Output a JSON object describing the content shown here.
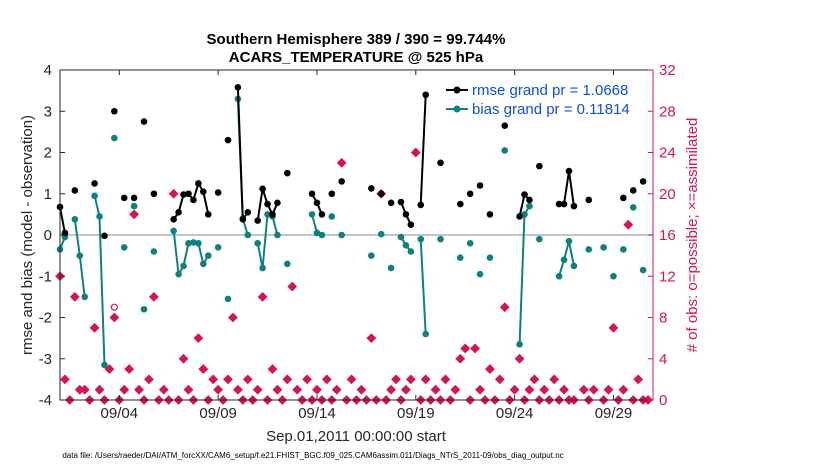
{
  "chart_data": {
    "type": "line",
    "title": "Southern Hemisphere 389 / 390 = 99.744%",
    "subtitle": "ACARS_TEMPERATURE @ 525 hPa",
    "xlabel": "Sep.01,2011 00:00:00 start",
    "ylabel": "rmse and bias (model - observation)",
    "y2label": "# of obs: o=possible; ×=assimilated",
    "footer": "data file: /Users/raeder/DAI/ATM_forcXX/CAM6_setup/f.e21.FHIST_BGC.f09_025.CAM6assim.011/Diags_NTrS_2011-09/obs_diag_output.nc",
    "xlim": [
      1,
      31
    ],
    "ylim": [
      -4,
      4
    ],
    "y2lim": [
      0,
      32
    ],
    "x_ticks": [
      4,
      9,
      14,
      19,
      24,
      29
    ],
    "x_tick_labels": [
      "09/04",
      "09/09",
      "09/14",
      "09/19",
      "09/24",
      "09/29"
    ],
    "y_ticks": [
      -4,
      -3,
      -2,
      -1,
      0,
      1,
      2,
      3,
      4
    ],
    "y_tick_labels": [
      "-4",
      "-3",
      "-2",
      "-1",
      "0",
      "1",
      "2",
      "3",
      "4"
    ],
    "y2_ticks": [
      0,
      4,
      8,
      12,
      16,
      20,
      24,
      28,
      32
    ],
    "y2_tick_labels": [
      "0",
      "4",
      "8",
      "12",
      "16",
      "20",
      "24",
      "28",
      "32"
    ],
    "legend_position": "top-right",
    "zero_line": 0,
    "colors": {
      "rmse": "#000000",
      "bias": "#0f8080",
      "obs": "#d4145a",
      "legend_text": "#0b4fe0",
      "zero_line": "#b0b0b0"
    },
    "series": [
      {
        "name": "rmse grand pr = 1.0668",
        "values": [
          [
            1.0,
            0.68
          ],
          [
            1.25,
            0.05
          ],
          [
            1.75,
            1.08
          ],
          [
            2.75,
            1.25
          ],
          [
            3.25,
            -0.02
          ],
          [
            3.75,
            3.0
          ],
          [
            4.25,
            0.9
          ],
          [
            4.75,
            0.9
          ],
          [
            5.25,
            2.75
          ],
          [
            5.75,
            1.0
          ],
          [
            6.75,
            0.38
          ],
          [
            7.0,
            0.55
          ],
          [
            7.25,
            0.98
          ],
          [
            7.5,
            1.0
          ],
          [
            7.75,
            0.85
          ],
          [
            8.0,
            1.25
          ],
          [
            8.25,
            1.05
          ],
          [
            8.5,
            0.5
          ],
          [
            9.0,
            1.03
          ],
          [
            9.5,
            2.3
          ],
          [
            10.0,
            3.58
          ],
          [
            10.25,
            0.38
          ],
          [
            10.5,
            0.55
          ],
          [
            11.0,
            0.35
          ],
          [
            11.25,
            1.12
          ],
          [
            11.5,
            0.75
          ],
          [
            11.75,
            0.5
          ],
          [
            12.0,
            0.78
          ],
          [
            12.5,
            1.5
          ],
          [
            13.75,
            1.0
          ],
          [
            14.0,
            0.78
          ],
          [
            14.25,
            0.5
          ],
          [
            14.75,
            1.0
          ],
          [
            15.25,
            1.3
          ],
          [
            16.75,
            1.13
          ],
          [
            17.25,
            1.0
          ],
          [
            17.75,
            0.78
          ],
          [
            18.25,
            0.8
          ],
          [
            18.5,
            0.5
          ],
          [
            18.75,
            0.25
          ],
          [
            19.25,
            0.73
          ],
          [
            19.5,
            3.4
          ],
          [
            20.25,
            1.75
          ],
          [
            21.25,
            0.75
          ],
          [
            21.75,
            1.0
          ],
          [
            22.25,
            1.2
          ],
          [
            22.75,
            0.5
          ],
          [
            23.5,
            2.65
          ],
          [
            24.25,
            0.45
          ],
          [
            24.5,
            0.98
          ],
          [
            24.75,
            0.85
          ],
          [
            25.25,
            1.67
          ],
          [
            26.25,
            0.75
          ],
          [
            26.5,
            0.75
          ],
          [
            26.75,
            1.55
          ],
          [
            27.0,
            0.7
          ],
          [
            27.75,
            0.85
          ],
          [
            29.5,
            0.9
          ],
          [
            30.0,
            1.08
          ],
          [
            30.5,
            1.3
          ]
        ]
      },
      {
        "name": "bias grand pr = 0.11814",
        "values": [
          [
            1.0,
            -0.35
          ],
          [
            1.25,
            -0.05
          ],
          [
            1.75,
            0.38
          ],
          [
            2.0,
            -0.5
          ],
          [
            2.25,
            -1.5
          ],
          [
            2.75,
            0.95
          ],
          [
            3.0,
            0.45
          ],
          [
            3.25,
            -3.15
          ],
          [
            3.75,
            2.35
          ],
          [
            4.25,
            -0.3
          ],
          [
            4.75,
            0.7
          ],
          [
            5.25,
            -1.8
          ],
          [
            5.75,
            -0.4
          ],
          [
            6.75,
            0.1
          ],
          [
            7.0,
            -0.95
          ],
          [
            7.25,
            -0.75
          ],
          [
            7.5,
            -0.2
          ],
          [
            7.75,
            -0.18
          ],
          [
            8.0,
            -0.2
          ],
          [
            8.25,
            -0.7
          ],
          [
            8.5,
            -0.5
          ],
          [
            9.0,
            -0.3
          ],
          [
            9.5,
            -1.55
          ],
          [
            10.0,
            3.3
          ],
          [
            10.25,
            0.4
          ],
          [
            10.5,
            0.0
          ],
          [
            11.0,
            -0.2
          ],
          [
            11.25,
            -0.8
          ],
          [
            11.5,
            0.5
          ],
          [
            11.75,
            0.45
          ],
          [
            12.0,
            0.0
          ],
          [
            12.5,
            -0.7
          ],
          [
            13.75,
            0.5
          ],
          [
            14.0,
            0.05
          ],
          [
            14.25,
            0.0
          ],
          [
            14.75,
            0.45
          ],
          [
            15.25,
            0.0
          ],
          [
            16.75,
            -0.5
          ],
          [
            17.25,
            0.02
          ],
          [
            17.75,
            -0.8
          ],
          [
            18.25,
            -0.05
          ],
          [
            18.5,
            -0.25
          ],
          [
            18.75,
            -0.4
          ],
          [
            19.25,
            -0.1
          ],
          [
            19.5,
            -2.4
          ],
          [
            20.25,
            -0.1
          ],
          [
            21.25,
            -0.55
          ],
          [
            21.75,
            -0.2
          ],
          [
            22.25,
            -0.95
          ],
          [
            22.75,
            -0.55
          ],
          [
            23.5,
            2.05
          ],
          [
            24.25,
            -2.65
          ],
          [
            24.5,
            0.5
          ],
          [
            24.75,
            0.7
          ],
          [
            25.25,
            -0.1
          ],
          [
            26.25,
            -1.0
          ],
          [
            26.5,
            -0.6
          ],
          [
            26.75,
            -0.15
          ],
          [
            27.0,
            -0.75
          ],
          [
            27.75,
            -0.35
          ],
          [
            28.5,
            -0.3
          ],
          [
            29.0,
            -1.0
          ],
          [
            29.5,
            -0.35
          ],
          [
            30.0,
            0.67
          ],
          [
            30.5,
            -0.85
          ]
        ]
      },
      {
        "name": "obs assimilated",
        "values": [
          [
            1.0,
            12
          ],
          [
            1.25,
            2
          ],
          [
            1.5,
            0
          ],
          [
            1.75,
            10
          ],
          [
            2.0,
            1
          ],
          [
            2.25,
            1
          ],
          [
            2.5,
            0
          ],
          [
            2.75,
            7
          ],
          [
            3.0,
            1
          ],
          [
            3.25,
            0
          ],
          [
            3.5,
            3
          ],
          [
            3.75,
            8
          ],
          [
            4.0,
            0
          ],
          [
            4.25,
            1
          ],
          [
            4.5,
            3
          ],
          [
            4.75,
            18
          ],
          [
            5.0,
            1
          ],
          [
            5.25,
            0
          ],
          [
            5.5,
            2
          ],
          [
            5.75,
            10
          ],
          [
            6.0,
            0
          ],
          [
            6.25,
            1
          ],
          [
            6.5,
            0
          ],
          [
            6.75,
            20
          ],
          [
            7.0,
            0
          ],
          [
            7.25,
            4
          ],
          [
            7.5,
            1
          ],
          [
            7.75,
            0
          ],
          [
            8.0,
            6
          ],
          [
            8.25,
            3
          ],
          [
            8.5,
            0
          ],
          [
            8.75,
            2
          ],
          [
            9.0,
            1
          ],
          [
            9.25,
            0
          ],
          [
            9.5,
            2
          ],
          [
            9.75,
            8
          ],
          [
            10.0,
            1
          ],
          [
            10.25,
            0
          ],
          [
            10.5,
            2
          ],
          [
            10.75,
            0
          ],
          [
            11.0,
            1
          ],
          [
            11.25,
            10
          ],
          [
            11.5,
            0
          ],
          [
            11.75,
            3
          ],
          [
            12.0,
            1
          ],
          [
            12.25,
            0
          ],
          [
            12.5,
            2
          ],
          [
            12.75,
            11
          ],
          [
            13.0,
            1
          ],
          [
            13.25,
            0
          ],
          [
            13.5,
            2
          ],
          [
            13.75,
            0
          ],
          [
            14.0,
            1
          ],
          [
            14.25,
            0
          ],
          [
            14.5,
            2
          ],
          [
            14.75,
            0
          ],
          [
            15.0,
            1
          ],
          [
            15.25,
            23
          ],
          [
            15.5,
            0
          ],
          [
            15.75,
            2
          ],
          [
            16.0,
            0
          ],
          [
            16.25,
            1
          ],
          [
            16.5,
            0
          ],
          [
            16.75,
            6
          ],
          [
            17.0,
            0
          ],
          [
            17.25,
            20
          ],
          [
            17.5,
            0
          ],
          [
            17.75,
            1
          ],
          [
            18.0,
            2
          ],
          [
            18.25,
            0
          ],
          [
            18.5,
            1
          ],
          [
            18.75,
            2
          ],
          [
            19.0,
            24
          ],
          [
            19.25,
            0
          ],
          [
            19.5,
            2
          ],
          [
            19.75,
            0
          ],
          [
            20.0,
            1
          ],
          [
            20.25,
            0
          ],
          [
            20.5,
            2
          ],
          [
            20.75,
            0
          ],
          [
            21.0,
            1
          ],
          [
            21.25,
            4
          ],
          [
            21.5,
            5
          ],
          [
            21.75,
            0
          ],
          [
            22.0,
            5
          ],
          [
            22.25,
            1
          ],
          [
            22.5,
            0
          ],
          [
            22.75,
            3
          ],
          [
            23.0,
            0
          ],
          [
            23.25,
            2
          ],
          [
            23.5,
            9
          ],
          [
            23.75,
            0
          ],
          [
            24.0,
            1
          ],
          [
            24.25,
            4
          ],
          [
            24.5,
            0
          ],
          [
            24.75,
            1
          ],
          [
            25.0,
            2
          ],
          [
            25.25,
            0
          ],
          [
            25.5,
            1
          ],
          [
            25.75,
            0
          ],
          [
            26.0,
            2
          ],
          [
            26.25,
            0
          ],
          [
            26.5,
            1
          ],
          [
            26.75,
            0
          ],
          [
            27.0,
            0
          ],
          [
            27.5,
            1
          ],
          [
            27.75,
            0
          ],
          [
            28.0,
            1
          ],
          [
            28.5,
            0
          ],
          [
            28.75,
            1
          ],
          [
            29.0,
            7
          ],
          [
            29.25,
            0
          ],
          [
            29.5,
            1
          ],
          [
            29.75,
            17
          ],
          [
            30.0,
            0
          ],
          [
            30.25,
            2
          ],
          [
            30.5,
            0
          ],
          [
            30.75,
            0
          ]
        ]
      },
      {
        "name": "obs possible",
        "values": [
          [
            3.75,
            9
          ]
        ]
      }
    ]
  },
  "legend": {
    "rmse": "rmse grand pr = 1.0668",
    "bias": "bias grand pr = 0.11814"
  }
}
